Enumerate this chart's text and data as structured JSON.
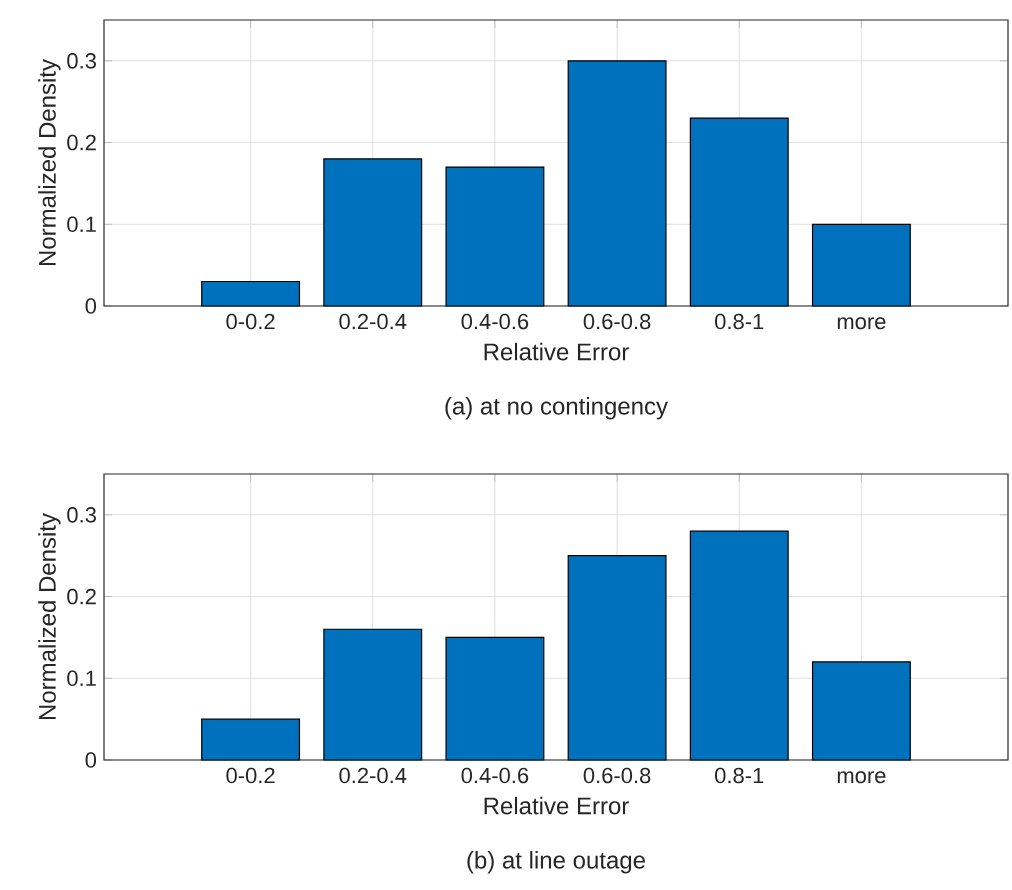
{
  "chart_data": [
    {
      "type": "bar",
      "categories": [
        "0-0.2",
        "0.2-0.4",
        "0.4-0.6",
        "0.6-0.8",
        "0.8-1",
        "more"
      ],
      "values": [
        0.03,
        0.18,
        0.17,
        0.3,
        0.23,
        0.1
      ],
      "color": "#0072bd",
      "xlabel": "Relative Error",
      "ylabel": "Normalized Density",
      "ylim": [
        0,
        0.35
      ],
      "yticks": [
        0,
        0.1,
        0.2,
        0.3
      ],
      "grid": true,
      "annotations": [
        "(a) at no contingency"
      ]
    },
    {
      "type": "bar",
      "categories": [
        "0-0.2",
        "0.2-0.4",
        "0.4-0.6",
        "0.6-0.8",
        "0.8-1",
        "more"
      ],
      "values": [
        0.05,
        0.16,
        0.15,
        0.25,
        0.28,
        0.12
      ],
      "color": "#0072bd",
      "xlabel": "Relative Error",
      "ylabel": "Normalized Density",
      "ylim": [
        0,
        0.35
      ],
      "yticks": [
        0,
        0.1,
        0.2,
        0.3
      ],
      "grid": true,
      "annotations": [
        "(b) at line outage"
      ]
    }
  ]
}
